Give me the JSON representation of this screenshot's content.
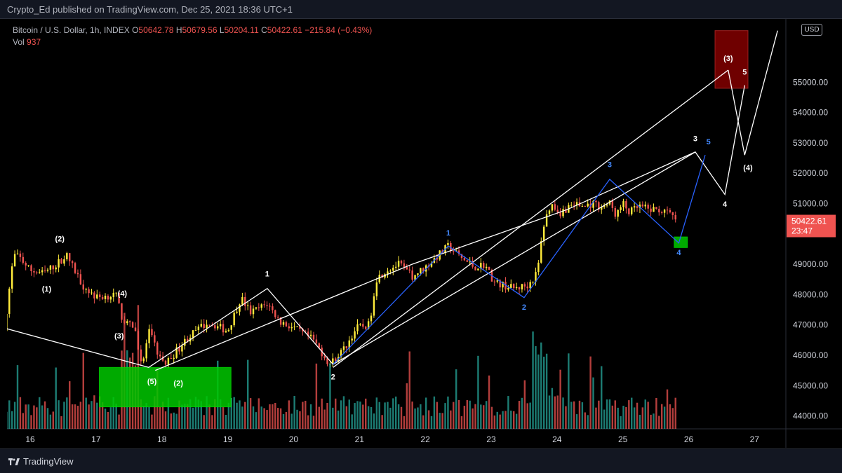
{
  "header": {
    "publish_line": "Crypto_Ed published on TradingView.com, Dec 25, 2021 18:36 UTC+1"
  },
  "legend": {
    "symbol": "Bitcoin / U.S. Dollar, 1h, INDEX",
    "o_label": "O",
    "o_value": "50642.78",
    "h_label": "H",
    "h_value": "50679.56",
    "l_label": "L",
    "l_value": "50204.11",
    "c_label": "C",
    "c_value": "50422.61",
    "change": "−215.84 (−0.43%)",
    "vol_label": "Vol",
    "vol_value": "937"
  },
  "currency": "USD",
  "footer": {
    "brand": "TradingView"
  },
  "colors": {
    "up": "#ffeb3b",
    "down": "#ef5350",
    "vol_up": "#26a69a",
    "vol_down": "#ef5350",
    "wave_white": "#ffffff",
    "wave_blue": "#2962ff",
    "zone_green": "#00c800",
    "zone_red": "#8b0000"
  },
  "chart_data": {
    "type": "candlestick",
    "x_ticks": [
      "16",
      "17",
      "18",
      "19",
      "20",
      "21",
      "22",
      "23",
      "24",
      "25",
      "26",
      "27"
    ],
    "y_ticks": [
      "44000.00",
      "45000.00",
      "46000.00",
      "47000.00",
      "48000.00",
      "49000.00",
      "50000.00",
      "51000.00",
      "52000.00",
      "53000.00",
      "54000.00",
      "55000.00"
    ],
    "y_range": [
      43000,
      56700
    ],
    "last_price": "50422.61",
    "countdown": "23:47",
    "price_anchors": [
      [
        15.6,
        46800
      ],
      [
        15.75,
        49300
      ],
      [
        15.85,
        49200
      ],
      [
        16.0,
        48800
      ],
      [
        16.2,
        48700
      ],
      [
        16.4,
        49000
      ],
      [
        16.55,
        49300
      ],
      [
        16.8,
        48300
      ],
      [
        17.0,
        47900
      ],
      [
        17.3,
        48000
      ],
      [
        17.4,
        47200
      ],
      [
        17.6,
        46800
      ],
      [
        17.7,
        45600
      ],
      [
        17.8,
        46800
      ],
      [
        17.95,
        46000
      ],
      [
        18.05,
        45700
      ],
      [
        18.4,
        46600
      ],
      [
        18.7,
        47100
      ],
      [
        19.0,
        46800
      ],
      [
        19.2,
        47900
      ],
      [
        19.35,
        47400
      ],
      [
        19.6,
        47700
      ],
      [
        19.8,
        47100
      ],
      [
        20.0,
        46900
      ],
      [
        20.3,
        46500
      ],
      [
        20.55,
        45700
      ],
      [
        20.8,
        46300
      ],
      [
        20.95,
        46900
      ],
      [
        21.15,
        47000
      ],
      [
        21.25,
        48500
      ],
      [
        21.4,
        48800
      ],
      [
        21.6,
        49000
      ],
      [
        21.8,
        48600
      ],
      [
        22.0,
        48900
      ],
      [
        22.2,
        49300
      ],
      [
        22.35,
        49600
      ],
      [
        22.55,
        49200
      ],
      [
        22.75,
        48900
      ],
      [
        22.9,
        49000
      ],
      [
        23.05,
        48400
      ],
      [
        23.2,
        48300
      ],
      [
        23.35,
        48200
      ],
      [
        23.55,
        48300
      ],
      [
        23.7,
        48700
      ],
      [
        23.8,
        50300
      ],
      [
        23.9,
        51000
      ],
      [
        24.05,
        50700
      ],
      [
        24.25,
        51000
      ],
      [
        24.4,
        50900
      ],
      [
        24.55,
        51000
      ],
      [
        24.65,
        50900
      ],
      [
        24.8,
        51000
      ],
      [
        24.9,
        50600
      ],
      [
        25.0,
        51000
      ],
      [
        25.1,
        50700
      ],
      [
        25.25,
        50900
      ],
      [
        25.4,
        50800
      ],
      [
        25.55,
        50800
      ],
      [
        25.75,
        50600
      ],
      [
        25.8,
        50400
      ]
    ],
    "series": [
      {
        "name": "white-channel",
        "lines": [
          [
            [
              17.9,
              45500
            ],
            [
              21.8,
              49000
            ],
            [
              24.15,
              50800
            ],
            [
              26.1,
              52700
            ]
          ],
          [
            [
              20.6,
              45600
            ],
            [
              26.6,
              55400
            ]
          ]
        ]
      },
      {
        "name": "white-waves",
        "lines": [
          [
            [
              15.6,
              46900
            ],
            [
              17.8,
              45600
            ],
            [
              19.6,
              48200
            ],
            [
              20.6,
              45700
            ],
            [
              26.1,
              52700
            ],
            [
              26.55,
              51300
            ],
            [
              26.85,
              54900
            ]
          ],
          [
            [
              26.6,
              55400
            ],
            [
              26.85,
              52600
            ],
            [
              27.35,
              56700
            ]
          ]
        ]
      },
      {
        "name": "blue-waves",
        "lines": [
          [
            [
              20.6,
              45700
            ],
            [
              22.35,
              49600
            ],
            [
              23.5,
              47900
            ],
            [
              24.8,
              51800
            ],
            [
              25.85,
              49700
            ],
            [
              26.25,
              52600
            ]
          ]
        ]
      }
    ],
    "zones": [
      {
        "color": "green",
        "x": [
          17.05,
          19.05
        ],
        "y": [
          44300,
          45600
        ]
      },
      {
        "color": "green",
        "x": [
          25.78,
          25.98
        ],
        "y": [
          49550,
          49900
        ]
      },
      {
        "color": "red",
        "x": [
          26.4,
          26.9
        ],
        "y": [
          54800,
          56700
        ]
      }
    ],
    "annotations": [
      {
        "text": "(2)",
        "x": 16.45,
        "y": 49750,
        "color": "white"
      },
      {
        "text": "(1)",
        "x": 16.25,
        "y": 48100,
        "color": "white"
      },
      {
        "text": "(4)",
        "x": 17.4,
        "y": 47950,
        "color": "white"
      },
      {
        "text": "(3)",
        "x": 17.35,
        "y": 46550,
        "color": "white"
      },
      {
        "text": "(5)",
        "x": 17.85,
        "y": 45050,
        "color": "white"
      },
      {
        "text": "(2)",
        "x": 18.25,
        "y": 45000,
        "color": "white"
      },
      {
        "text": "1",
        "x": 19.6,
        "y": 48600,
        "color": "white"
      },
      {
        "text": "2",
        "x": 20.6,
        "y": 45200,
        "color": "white"
      },
      {
        "text": "1",
        "x": 22.35,
        "y": 49950,
        "color": "blue"
      },
      {
        "text": "2",
        "x": 23.5,
        "y": 47500,
        "color": "blue"
      },
      {
        "text": "3",
        "x": 24.8,
        "y": 52200,
        "color": "blue"
      },
      {
        "text": "4",
        "x": 25.85,
        "y": 49300,
        "color": "blue"
      },
      {
        "text": "5",
        "x": 26.3,
        "y": 52950,
        "color": "blue"
      },
      {
        "text": "3",
        "x": 26.1,
        "y": 53050,
        "color": "white"
      },
      {
        "text": "4",
        "x": 26.55,
        "y": 50900,
        "color": "white"
      },
      {
        "text": "(3)",
        "x": 26.6,
        "y": 55700,
        "color": "white"
      },
      {
        "text": "5",
        "x": 26.85,
        "y": 55250,
        "color": "white"
      },
      {
        "text": "(4)",
        "x": 26.9,
        "y": 52100,
        "color": "white"
      }
    ]
  }
}
